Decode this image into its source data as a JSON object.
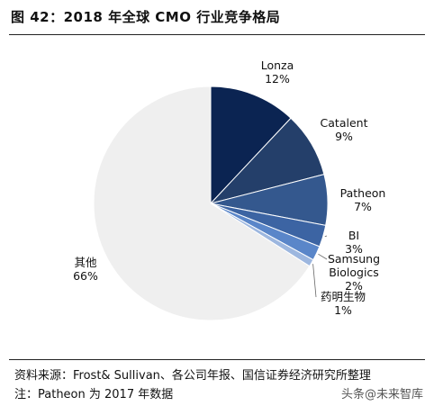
{
  "figure_title": "图 42：2018 年全球 CMO 行业竞争格局",
  "source_text": "资料来源：Frost& Sullivan、各公司年报、国信证券经济研究所整理",
  "note_text": "注：Patheon 为 2017 年数据",
  "watermark_text": "头条@未来智库",
  "chart_data": {
    "type": "pie",
    "title": "",
    "labels": [
      "Lonza",
      "Catalent",
      "Patheon",
      "BI",
      "Samsung Biologics",
      "药明生物",
      "其他"
    ],
    "values": [
      12,
      9,
      7,
      3,
      2,
      1,
      66
    ],
    "value_labels": [
      "12%",
      "9%",
      "7%",
      "3%",
      "2%",
      "1%",
      "66%"
    ],
    "colors": [
      "#0b2452",
      "#243f6a",
      "#34588e",
      "#3c64a3",
      "#5a86c9",
      "#9db7df",
      "#efefef"
    ],
    "legend": "none"
  }
}
